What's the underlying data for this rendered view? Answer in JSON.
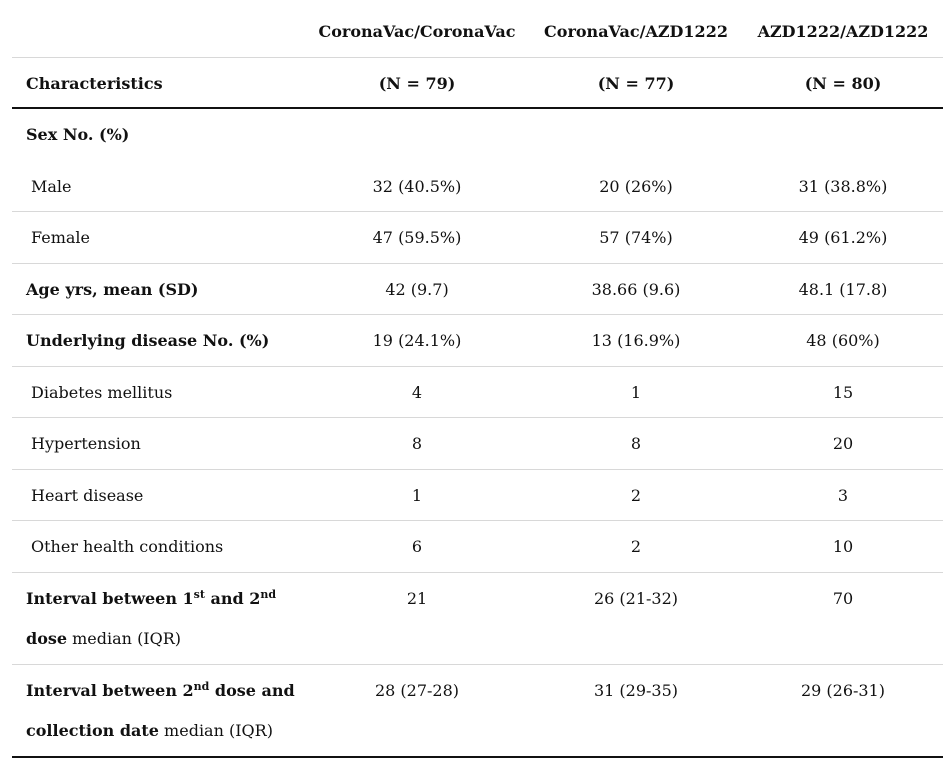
{
  "header": {
    "groups": [
      "CoronaVac/CoronaVac",
      "CoronaVac/AZD1222",
      "AZD1222/AZD1222"
    ],
    "label": "Characteristics",
    "counts": [
      "(N = 79)",
      "(N = 77)",
      "(N = 80)"
    ]
  },
  "rows": [
    {
      "label_lines": [
        [
          {
            "text": "Sex No. (%)",
            "bold": true
          }
        ]
      ]
    },
    {
      "label_lines": [
        [
          {
            "text": "Male"
          }
        ]
      ],
      "values": [
        "32 (40.5%)",
        "20 (26%)",
        "31 (38.8%)"
      ]
    },
    {
      "label_lines": [
        [
          {
            "text": "Female"
          }
        ]
      ],
      "values": [
        "47 (59.5%)",
        "57 (74%)",
        "49 (61.2%)"
      ]
    },
    {
      "label_lines": [
        [
          {
            "text": "Age yrs, mean (SD)",
            "bold": true
          }
        ]
      ],
      "values": [
        "42 (9.7)",
        "38.66 (9.6)",
        "48.1 (17.8)"
      ]
    },
    {
      "label_lines": [
        [
          {
            "text": "Underlying disease No. (%)",
            "bold": true
          }
        ]
      ],
      "values": [
        "19 (24.1%)",
        "13 (16.9%)",
        "48 (60%)"
      ]
    },
    {
      "label_lines": [
        [
          {
            "text": "Diabetes mellitus"
          }
        ]
      ],
      "values": [
        "4",
        "1",
        "15"
      ]
    },
    {
      "label_lines": [
        [
          {
            "text": "Hypertension"
          }
        ]
      ],
      "values": [
        "8",
        "8",
        "20"
      ]
    },
    {
      "label_lines": [
        [
          {
            "text": "Heart disease"
          }
        ]
      ],
      "values": [
        "1",
        "2",
        "3"
      ]
    },
    {
      "label_lines": [
        [
          {
            "text": "Other health conditions"
          }
        ]
      ],
      "values": [
        "6",
        "2",
        "10"
      ]
    },
    {
      "label_lines": [
        [
          {
            "text": "Interval between 1",
            "bold": true
          },
          {
            "text": "st",
            "bold": true,
            "sup": true
          },
          {
            "text": " and 2",
            "bold": true
          },
          {
            "text": "nd",
            "bold": true,
            "sup": true
          }
        ],
        [
          {
            "text": "dose",
            "bold": true
          },
          {
            "text": " median (IQR)"
          }
        ]
      ],
      "values": [
        "21",
        "26 (21-32)",
        "70"
      ]
    },
    {
      "label_lines": [
        [
          {
            "text": "Interval between 2",
            "bold": true
          },
          {
            "text": "nd",
            "bold": true,
            "sup": true
          },
          {
            "text": " dose and",
            "bold": true
          }
        ],
        [
          {
            "text": "collection date",
            "bold": true
          },
          {
            "text": " median (IQR)"
          }
        ]
      ],
      "values": [
        "28 (27-28)",
        "31 (29-35)",
        "29 (26-31)"
      ]
    }
  ]
}
